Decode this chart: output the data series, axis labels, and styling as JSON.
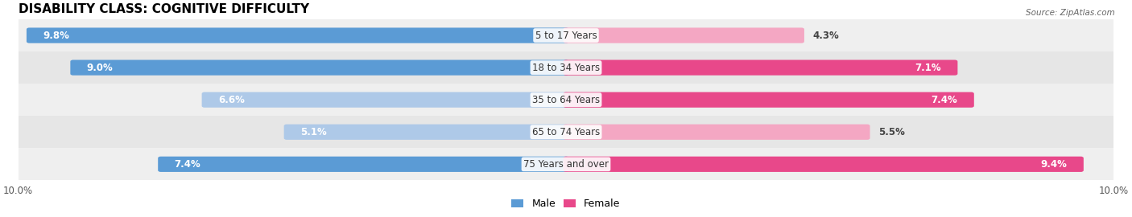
{
  "title": "DISABILITY CLASS: COGNITIVE DIFFICULTY",
  "source": "Source: ZipAtlas.com",
  "categories": [
    "5 to 17 Years",
    "18 to 34 Years",
    "35 to 64 Years",
    "65 to 74 Years",
    "75 Years and over"
  ],
  "male_values": [
    9.8,
    9.0,
    6.6,
    5.1,
    7.4
  ],
  "female_values": [
    4.3,
    7.1,
    7.4,
    5.5,
    9.4
  ],
  "max_val": 10.0,
  "male_color_dark": "#5b9bd5",
  "male_color_light": "#aec9e8",
  "female_color_dark": "#e8488a",
  "female_color_light": "#f4a7c3",
  "row_bg_colors": [
    "#efefef",
    "#e6e6e6",
    "#efefef",
    "#e6e6e6",
    "#efefef"
  ],
  "title_fontsize": 11,
  "label_fontsize": 8.5,
  "tick_fontsize": 8.5,
  "legend_fontsize": 9
}
